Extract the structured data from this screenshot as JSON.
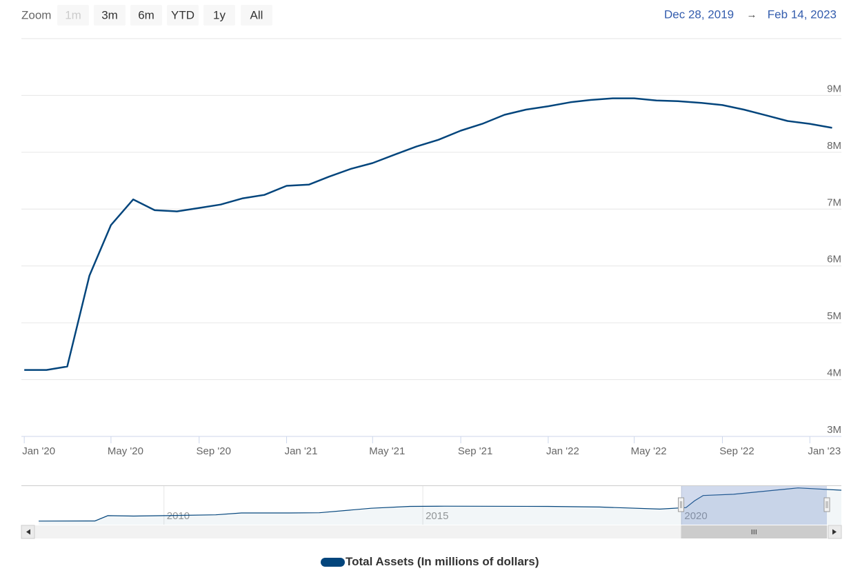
{
  "zoom": {
    "label": "Zoom",
    "buttons": [
      "1m",
      "3m",
      "6m",
      "YTD",
      "1y",
      "All"
    ],
    "disabled": [
      "1m"
    ]
  },
  "range": {
    "from": "Dec 28, 2019",
    "arrow": "→",
    "to": "Feb 14, 2023"
  },
  "chart_data": {
    "type": "line",
    "xlim": [
      "2019-12-28",
      "2023-02-14"
    ],
    "xticks": [
      {
        "value": "2020-01",
        "label": "Jan '20"
      },
      {
        "value": "2020-05",
        "label": "May '20"
      },
      {
        "value": "2020-09",
        "label": "Sep '20"
      },
      {
        "value": "2021-01",
        "label": "Jan '21"
      },
      {
        "value": "2021-05",
        "label": "May '21"
      },
      {
        "value": "2021-09",
        "label": "Sep '21"
      },
      {
        "value": "2022-01",
        "label": "Jan '22"
      },
      {
        "value": "2022-05",
        "label": "May '22"
      },
      {
        "value": "2022-09",
        "label": "Sep '22"
      },
      {
        "value": "2023-01",
        "label": "Jan '23"
      }
    ],
    "ylim": [
      3000000,
      10000000
    ],
    "yticks": [
      {
        "value": 3000000,
        "label": "3M"
      },
      {
        "value": 4000000,
        "label": "4M"
      },
      {
        "value": 5000000,
        "label": "5M"
      },
      {
        "value": 6000000,
        "label": "6M"
      },
      {
        "value": 7000000,
        "label": "7M"
      },
      {
        "value": 8000000,
        "label": "8M"
      },
      {
        "value": 9000000,
        "label": "9M"
      }
    ],
    "grid": true,
    "x": [
      "2020-01",
      "2020-02",
      "2020-03",
      "2020-04",
      "2020-05",
      "2020-06",
      "2020-07",
      "2020-08",
      "2020-09",
      "2020-10",
      "2020-11",
      "2020-12",
      "2021-01",
      "2021-02",
      "2021-03",
      "2021-04",
      "2021-05",
      "2021-06",
      "2021-07",
      "2021-08",
      "2021-09",
      "2021-10",
      "2021-11",
      "2021-12",
      "2022-01",
      "2022-02",
      "2022-03",
      "2022-04",
      "2022-05",
      "2022-06",
      "2022-07",
      "2022-08",
      "2022-09",
      "2022-10",
      "2022-11",
      "2022-12",
      "2023-01",
      "2023-02"
    ],
    "series": [
      {
        "name": "Total Assets (In millions of dollars)",
        "color": "#03457c",
        "values": [
          4170000,
          4170000,
          4230000,
          5830000,
          6720000,
          7170000,
          6980000,
          6960000,
          7020000,
          7080000,
          7190000,
          7250000,
          7410000,
          7430000,
          7570000,
          7710000,
          7810000,
          7960000,
          8100000,
          8220000,
          8380000,
          8500000,
          8660000,
          8750000,
          8810000,
          8880000,
          8920000,
          8950000,
          8950000,
          8910000,
          8900000,
          8870000,
          8830000,
          8750000,
          8650000,
          8550000,
          8500000,
          8430000
        ]
      }
    ],
    "legend": "bottom",
    "navigator": {
      "xlim": [
        "2007-04",
        "2023-02"
      ],
      "ylim": [
        0,
        9400000
      ],
      "xticks": [
        {
          "value": "2010-01",
          "label": "2010"
        },
        {
          "value": "2015-01",
          "label": "2015"
        },
        {
          "value": "2020-01",
          "label": "2020"
        }
      ],
      "x": [
        "2007-08",
        "2008-09",
        "2008-12",
        "2009-06",
        "2010-01",
        "2011-01",
        "2011-07",
        "2012-06",
        "2013-01",
        "2014-01",
        "2014-10",
        "2015-06",
        "2017-06",
        "2018-06",
        "2019-08",
        "2020-02",
        "2020-04",
        "2020-06",
        "2021-01",
        "2022-04",
        "2023-02"
      ],
      "values": [
        870000,
        900000,
        2200000,
        2100000,
        2200000,
        2400000,
        2850000,
        2850000,
        2900000,
        4000000,
        4450000,
        4500000,
        4450000,
        4300000,
        3800000,
        4170000,
        5800000,
        7100000,
        7400000,
        8950000,
        8400000
      ]
    }
  }
}
